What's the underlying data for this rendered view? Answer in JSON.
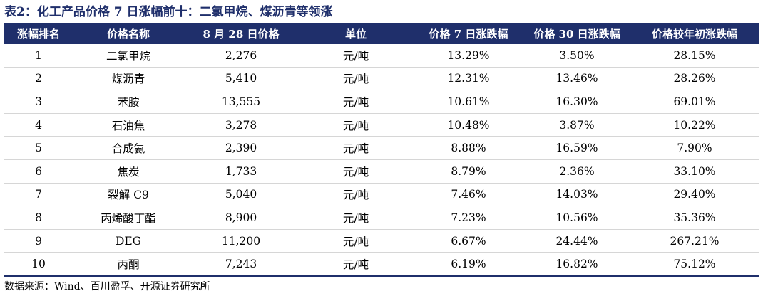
{
  "title": "表2：化工产品价格 7 日涨幅前十：二氯甲烷、煤沥青等领涨",
  "headers": [
    "涨幅排名",
    "价格名称",
    "8 月 28 日价格",
    "单位",
    "价格 7 日涨跌幅",
    "价格 30 日涨跌幅",
    "价格较年初涨跌幅"
  ],
  "rows": [
    [
      "1",
      "二氯甲烷",
      "2,276",
      "元/吨",
      "13.29%",
      "3.50%",
      "28.15%"
    ],
    [
      "2",
      "煤沥青",
      "5,410",
      "元/吨",
      "12.31%",
      "13.46%",
      "28.26%"
    ],
    [
      "3",
      "苯胺",
      "13,555",
      "元/吨",
      "10.61%",
      "16.30%",
      "69.01%"
    ],
    [
      "4",
      "石油焦",
      "3,278",
      "元/吨",
      "10.48%",
      "3.87%",
      "10.22%"
    ],
    [
      "5",
      "合成氨",
      "2,390",
      "元/吨",
      "8.88%",
      "16.59%",
      "7.90%"
    ],
    [
      "6",
      "焦炭",
      "1,733",
      "元/吨",
      "8.79%",
      "2.36%",
      "33.10%"
    ],
    [
      "7",
      "裂解 C9",
      "5,040",
      "元/吨",
      "7.46%",
      "14.03%",
      "29.40%"
    ],
    [
      "8",
      "丙烯酸丁酯",
      "8,900",
      "元/吨",
      "7.23%",
      "10.56%",
      "35.36%"
    ],
    [
      "9",
      "DEG",
      "11,200",
      "元/吨",
      "6.67%",
      "24.44%",
      "267.21%"
    ],
    [
      "10",
      "丙酮",
      "7,243",
      "元/吨",
      "6.19%",
      "16.82%",
      "75.12%"
    ]
  ],
  "source": "数据来源：Wind、百川盈孚、开源证券研究所",
  "colors": {
    "header_bg": "#1f2f6b",
    "title": "#1f2f6b"
  }
}
